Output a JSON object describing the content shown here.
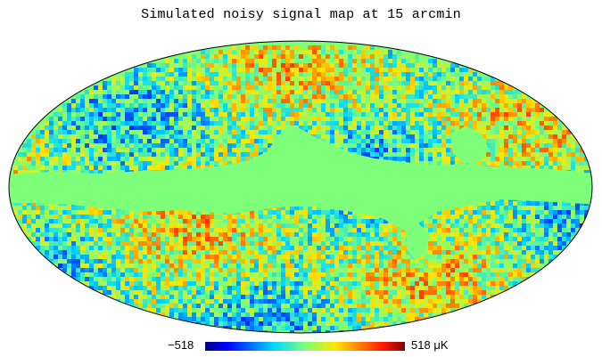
{
  "title": "Simulated noisy signal map at 15 arcmin",
  "projection": "mollweide",
  "colormap": "jet",
  "masked_value_color": "#7dff7a",
  "colorbar": {
    "min_label": "−518",
    "max_label": "518",
    "unit_label": "μK",
    "min_value": -518,
    "max_value": 518
  }
}
